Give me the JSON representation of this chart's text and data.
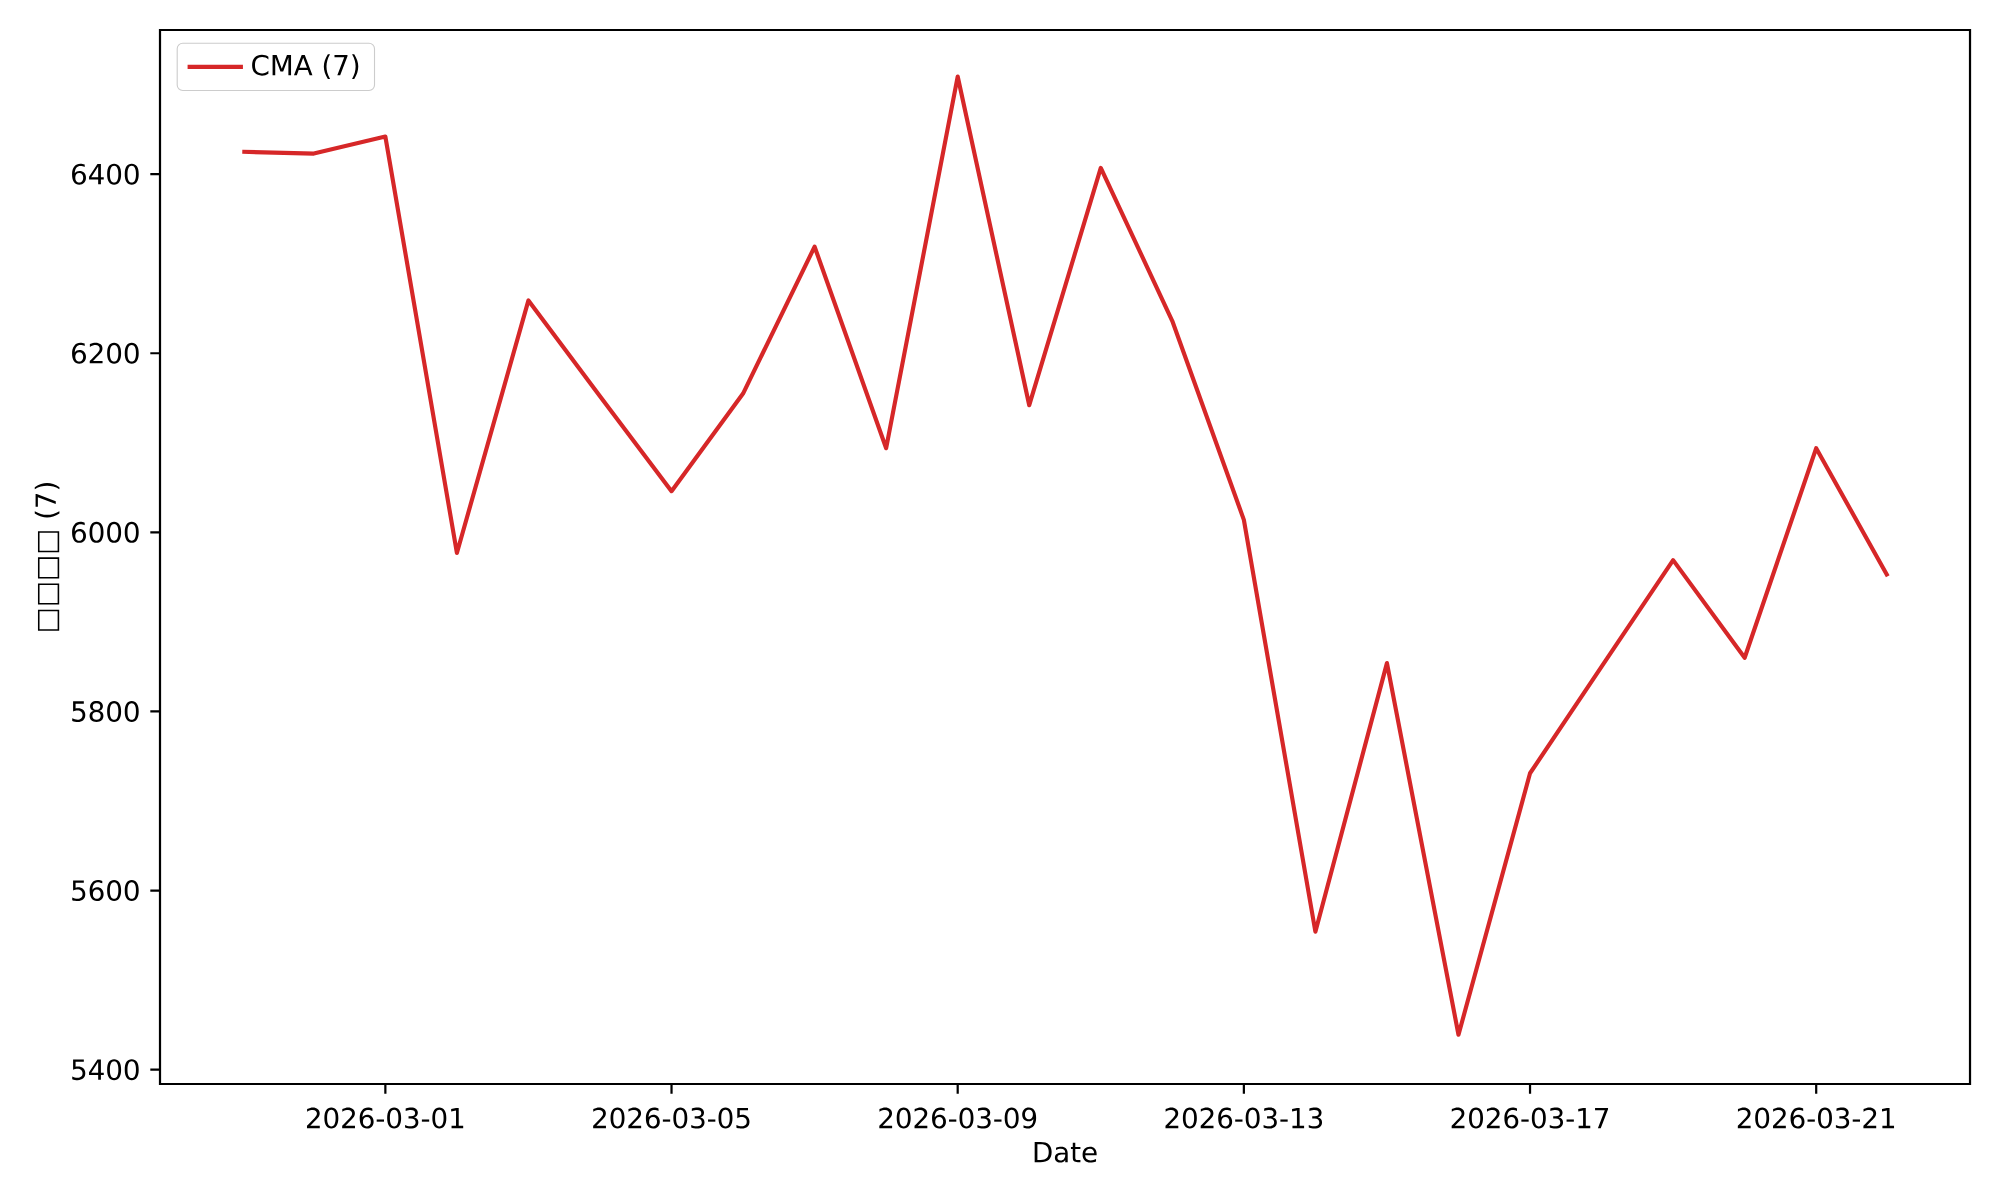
{
  "chart_data": {
    "type": "line",
    "xlabel": "Date",
    "ylabel": "□□□□ (7)",
    "x": [
      "2026-02-27",
      "2026-02-28",
      "2026-03-01",
      "2026-03-02",
      "2026-03-03",
      "2026-03-04",
      "2026-03-05",
      "2026-03-06",
      "2026-03-07",
      "2026-03-08",
      "2026-03-09",
      "2026-03-10",
      "2026-03-11",
      "2026-03-12",
      "2026-03-13",
      "2026-03-14",
      "2026-03-15",
      "2026-03-16",
      "2026-03-17",
      "2026-03-18",
      "2026-03-19",
      "2026-03-20",
      "2026-03-21",
      "2026-03-22"
    ],
    "series": [
      {
        "name": "CMA (7)",
        "color": "#d62728",
        "values": [
          6425,
          6423,
          6442,
          5977,
          6259,
          6152,
          6046,
          6155,
          6319,
          6094,
          6509,
          6142,
          6407,
          6236,
          6014,
          5554,
          5854,
          5439,
          5731,
          5850,
          5969,
          5860,
          6094,
          5951
        ]
      }
    ],
    "xlim": [
      "2026-02-25T20:24",
      "2026-03-23T03:36"
    ],
    "ylim": [
      5384,
      6561
    ],
    "xticks": [
      "2026-03-01",
      "2026-03-05",
      "2026-03-09",
      "2026-03-13",
      "2026-03-17",
      "2026-03-21"
    ],
    "yticks": [
      5400,
      5600,
      5800,
      6000,
      6200,
      6400
    ],
    "legend": "top left",
    "marker": "none",
    "line_style": "solid"
  }
}
